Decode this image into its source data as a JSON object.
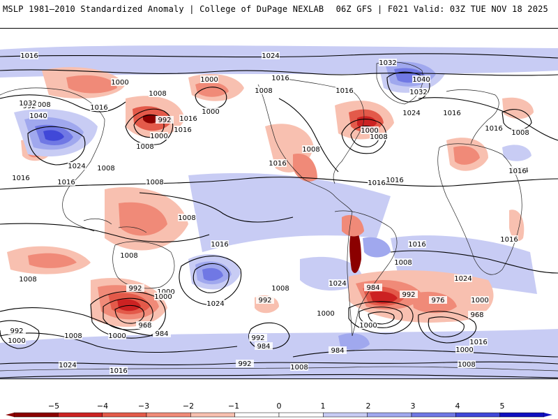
{
  "header": {
    "title_left": "MSLP 1981–2010 Standardized Anomaly | College of DuPage NEXLAB",
    "title_right": "06Z GFS | F021 Valid: 03Z TUE NOV 18 2025"
  },
  "colors": {
    "neg5": "#8b0000",
    "neg4": "#cc2222",
    "neg3": "#e35a4a",
    "neg2": "#f08a78",
    "neg1": "#f8c0b0",
    "zero": "#ffffff",
    "pos1": "#c8ccf4",
    "pos2": "#a0a8ee",
    "pos3": "#7078e4",
    "pos4": "#4048d8",
    "pos5": "#1010c0",
    "coast": "#222222",
    "isobar": "#000000"
  },
  "colorbar": {
    "ticks": [
      "−5",
      "−4",
      "−3",
      "−2",
      "−1",
      "0",
      "1",
      "2",
      "3",
      "4",
      "5"
    ]
  },
  "isobar_labels": [
    "1016",
    "1024",
    "1032",
    "1040",
    "1032",
    "1016",
    "1000",
    "1008",
    "1000",
    "1008",
    "1016",
    "1016",
    "1016",
    "1000",
    "1008",
    "992",
    "1000",
    "1008",
    "992",
    "1016",
    "1000",
    "1008",
    "1032",
    "1040",
    "1024",
    "1024",
    "1016",
    "1016",
    "1008",
    "1016",
    "1008",
    "1016",
    "1024",
    "1008",
    "1016",
    "1016",
    "1008",
    "1016",
    "1008",
    "1016",
    "1016",
    "1024",
    "1016",
    "1008",
    "1008",
    "1008",
    "992",
    "1000",
    "968",
    "984",
    "1024",
    "992",
    "1000",
    "1024",
    "984",
    "992",
    "976",
    "1000",
    "968",
    "992",
    "1000",
    "1008",
    "1000",
    "984",
    "1000",
    "1000",
    "992",
    "1008",
    "1016",
    "1008",
    "1024",
    "1016",
    "1008",
    "1000",
    "992",
    "984",
    "1016"
  ],
  "anomaly_regions": [
    {
      "name": "north-pacific-low-west",
      "level": "neg2"
    },
    {
      "name": "aleutian-low",
      "level": "neg4"
    },
    {
      "name": "gulf-of-alaska-low",
      "level": "neg2"
    },
    {
      "name": "siberian-high",
      "level": "pos3"
    },
    {
      "name": "mongolia-low",
      "level": "neg3"
    },
    {
      "name": "greenland-high",
      "level": "pos3"
    },
    {
      "name": "north-atlantic-low",
      "level": "neg4"
    },
    {
      "name": "western-us-low",
      "level": "neg2"
    },
    {
      "name": "mexico-low",
      "level": "neg2"
    },
    {
      "name": "australia-low",
      "level": "neg2"
    },
    {
      "name": "south-pacific-high",
      "level": "pos3"
    },
    {
      "name": "south-indian-low",
      "level": "neg4"
    },
    {
      "name": "andes-low",
      "level": "neg5"
    },
    {
      "name": "south-atlantic-low",
      "level": "neg4"
    },
    {
      "name": "africa-low",
      "level": "neg2"
    },
    {
      "name": "tropical-pacific-high",
      "level": "pos1"
    },
    {
      "name": "antarctic-high",
      "level": "pos2"
    }
  ]
}
